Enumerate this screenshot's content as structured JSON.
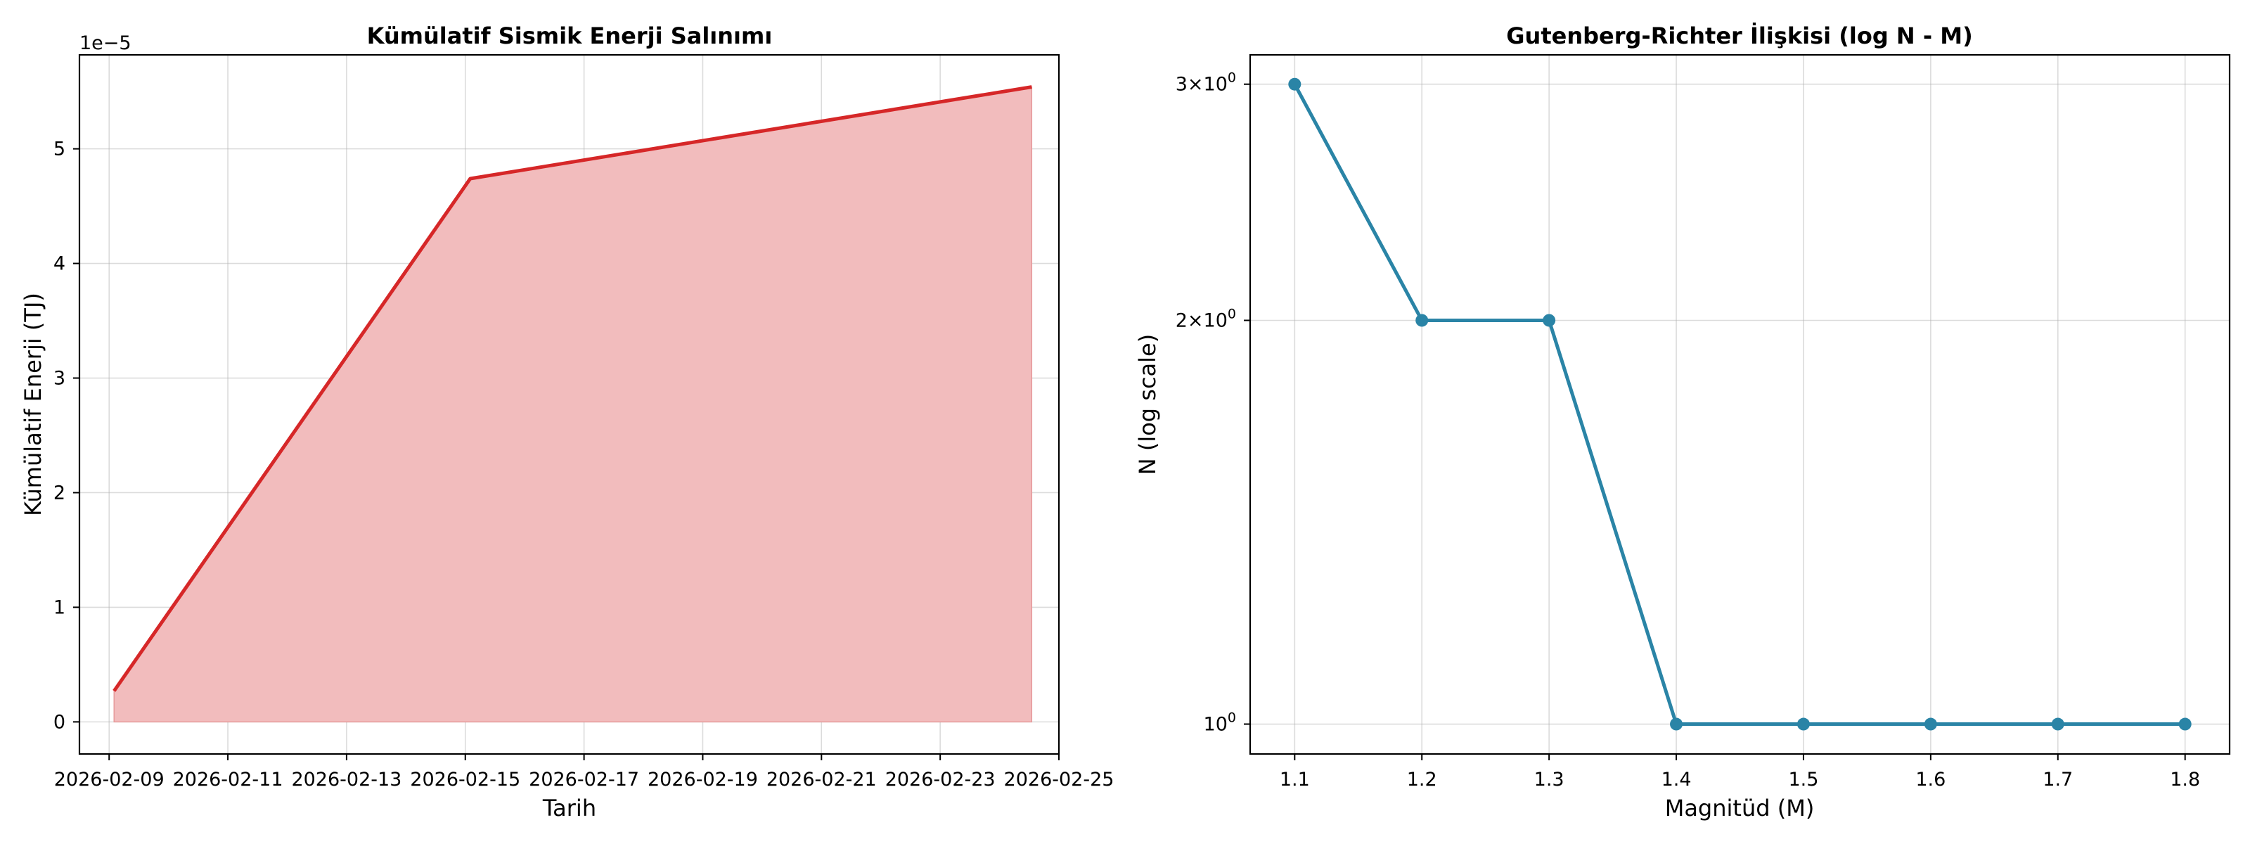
{
  "chart_data": [
    {
      "type": "area",
      "title": "Kümülatif Sismik Enerji Salınımı",
      "xlabel": "Tarih",
      "ylabel": "Kümülatif Enerji (TJ)",
      "y_offset_text": "1e−5",
      "x_tick_labels": [
        "2026-02-09",
        "2026-02-11",
        "2026-02-13",
        "2026-02-15",
        "2026-02-17",
        "2026-02-19",
        "2026-02-21",
        "2026-02-23",
        "2026-02-25"
      ],
      "x_ticks": [
        "2026-02-09",
        "2026-02-11",
        "2026-02-13",
        "2026-02-15",
        "2026-02-17",
        "2026-02-19",
        "2026-02-21",
        "2026-02-23",
        "2026-02-25"
      ],
      "x_range": [
        "2026-02-08T12:00",
        "2026-02-25T00:00"
      ],
      "y_tick_labels": [
        "0",
        "1",
        "2",
        "3",
        "4",
        "5"
      ],
      "y_ticks": [
        0,
        1e-05,
        2e-05,
        3e-05,
        4e-05,
        5e-05
      ],
      "ylim": [
        -2.8e-06,
        5.82e-05
      ],
      "points": [
        {
          "x": "2026-02-09T02:00",
          "y": 2.7e-06
        },
        {
          "x": "2026-02-15T02:00",
          "y": 4.74e-05
        },
        {
          "x": "2026-02-24T13:00",
          "y": 5.54e-05
        }
      ],
      "grid": true,
      "colors": {
        "line": "#d62728",
        "fill": "#f2bcbd"
      }
    },
    {
      "type": "line",
      "title": "Gutenberg-Richter İlişkisi (log N - M)",
      "xlabel": "Magnitüd (M)",
      "ylabel": "N (log scale)",
      "y_scale": "log",
      "x": [
        1.1,
        1.2,
        1.3,
        1.4,
        1.5,
        1.6,
        1.7,
        1.8
      ],
      "y": [
        3,
        2,
        2,
        1,
        1,
        1,
        1,
        1
      ],
      "x_tick_labels": [
        "1.1",
        "1.2",
        "1.3",
        "1.4",
        "1.5",
        "1.6",
        "1.7",
        "1.8"
      ],
      "x_ticks": [
        1.1,
        1.2,
        1.3,
        1.4,
        1.5,
        1.6,
        1.7,
        1.8
      ],
      "xlim": [
        1.065,
        1.835
      ],
      "y_ticks": [
        {
          "value": 3,
          "base": "3×10",
          "exp": "0"
        },
        {
          "value": 2,
          "base": "2×10",
          "exp": "0"
        },
        {
          "value": 1,
          "base": "10",
          "exp": "0"
        }
      ],
      "ylim": [
        0.95,
        3.155
      ],
      "grid": true,
      "colors": {
        "line": "#2a84a6",
        "marker": "#2a84a6"
      }
    }
  ]
}
